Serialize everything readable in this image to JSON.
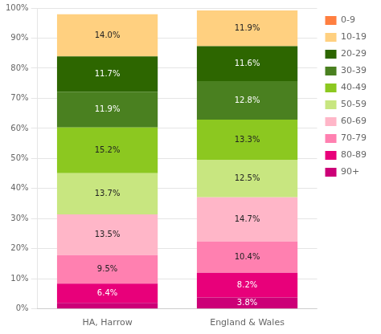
{
  "chart_data": {
    "type": "bar",
    "stacked": true,
    "categories": [
      "HA, Harrow",
      "England & Wales"
    ],
    "series": [
      {
        "name": "90+",
        "color": "#cc0077",
        "values": [
          2.0,
          3.8
        ],
        "value_labels": [
          null,
          "3.8%"
        ]
      },
      {
        "name": "80-89",
        "color": "#e8007a",
        "values": [
          6.4,
          8.2
        ],
        "value_labels": [
          "6.4%",
          "8.2%"
        ]
      },
      {
        "name": "70-79",
        "color": "#ff80b0",
        "values": [
          9.5,
          10.4
        ],
        "value_labels": [
          "9.5%",
          "10.4%"
        ]
      },
      {
        "name": "60-69",
        "color": "#ffb6c8",
        "values": [
          13.5,
          14.7
        ],
        "value_labels": [
          "13.5%",
          "14.7%"
        ]
      },
      {
        "name": "50-59",
        "color": "#c8e680",
        "values": [
          13.7,
          12.5
        ],
        "value_labels": [
          "13.7%",
          "12.5%"
        ]
      },
      {
        "name": "40-49",
        "color": "#8cc820",
        "values": [
          15.2,
          13.3
        ],
        "value_labels": [
          "15.2%",
          "13.3%"
        ]
      },
      {
        "name": "30-39",
        "color": "#4a8020",
        "values": [
          11.9,
          12.8
        ],
        "value_labels": [
          "11.9%",
          "12.8%"
        ]
      },
      {
        "name": "20-29",
        "color": "#2d6600",
        "values": [
          11.7,
          11.6
        ],
        "value_labels": [
          "11.7%",
          "11.6%"
        ]
      },
      {
        "name": "10-19",
        "color": "#ffd080",
        "values": [
          14.0,
          11.9
        ],
        "value_labels": [
          "14.0%",
          "11.9%"
        ]
      },
      {
        "name": "0-9",
        "color": "#ff7f40",
        "values": [
          null,
          null
        ]
      }
    ],
    "ylim": [
      0,
      100
    ],
    "yticks": [
      {
        "value": 0,
        "label": "0%"
      },
      {
        "value": 10,
        "label": "10%"
      },
      {
        "value": 20,
        "label": "20%"
      },
      {
        "value": 30,
        "label": "30%"
      },
      {
        "value": 40,
        "label": "40%"
      },
      {
        "value": 50,
        "label": "50%"
      },
      {
        "value": 60,
        "label": "60%"
      },
      {
        "value": 70,
        "label": "70%"
      },
      {
        "value": 80,
        "label": "80%"
      },
      {
        "value": 90,
        "label": "90%"
      },
      {
        "value": 100,
        "label": "100%"
      }
    ],
    "grid": true,
    "legend": "right",
    "data_labels": true
  }
}
